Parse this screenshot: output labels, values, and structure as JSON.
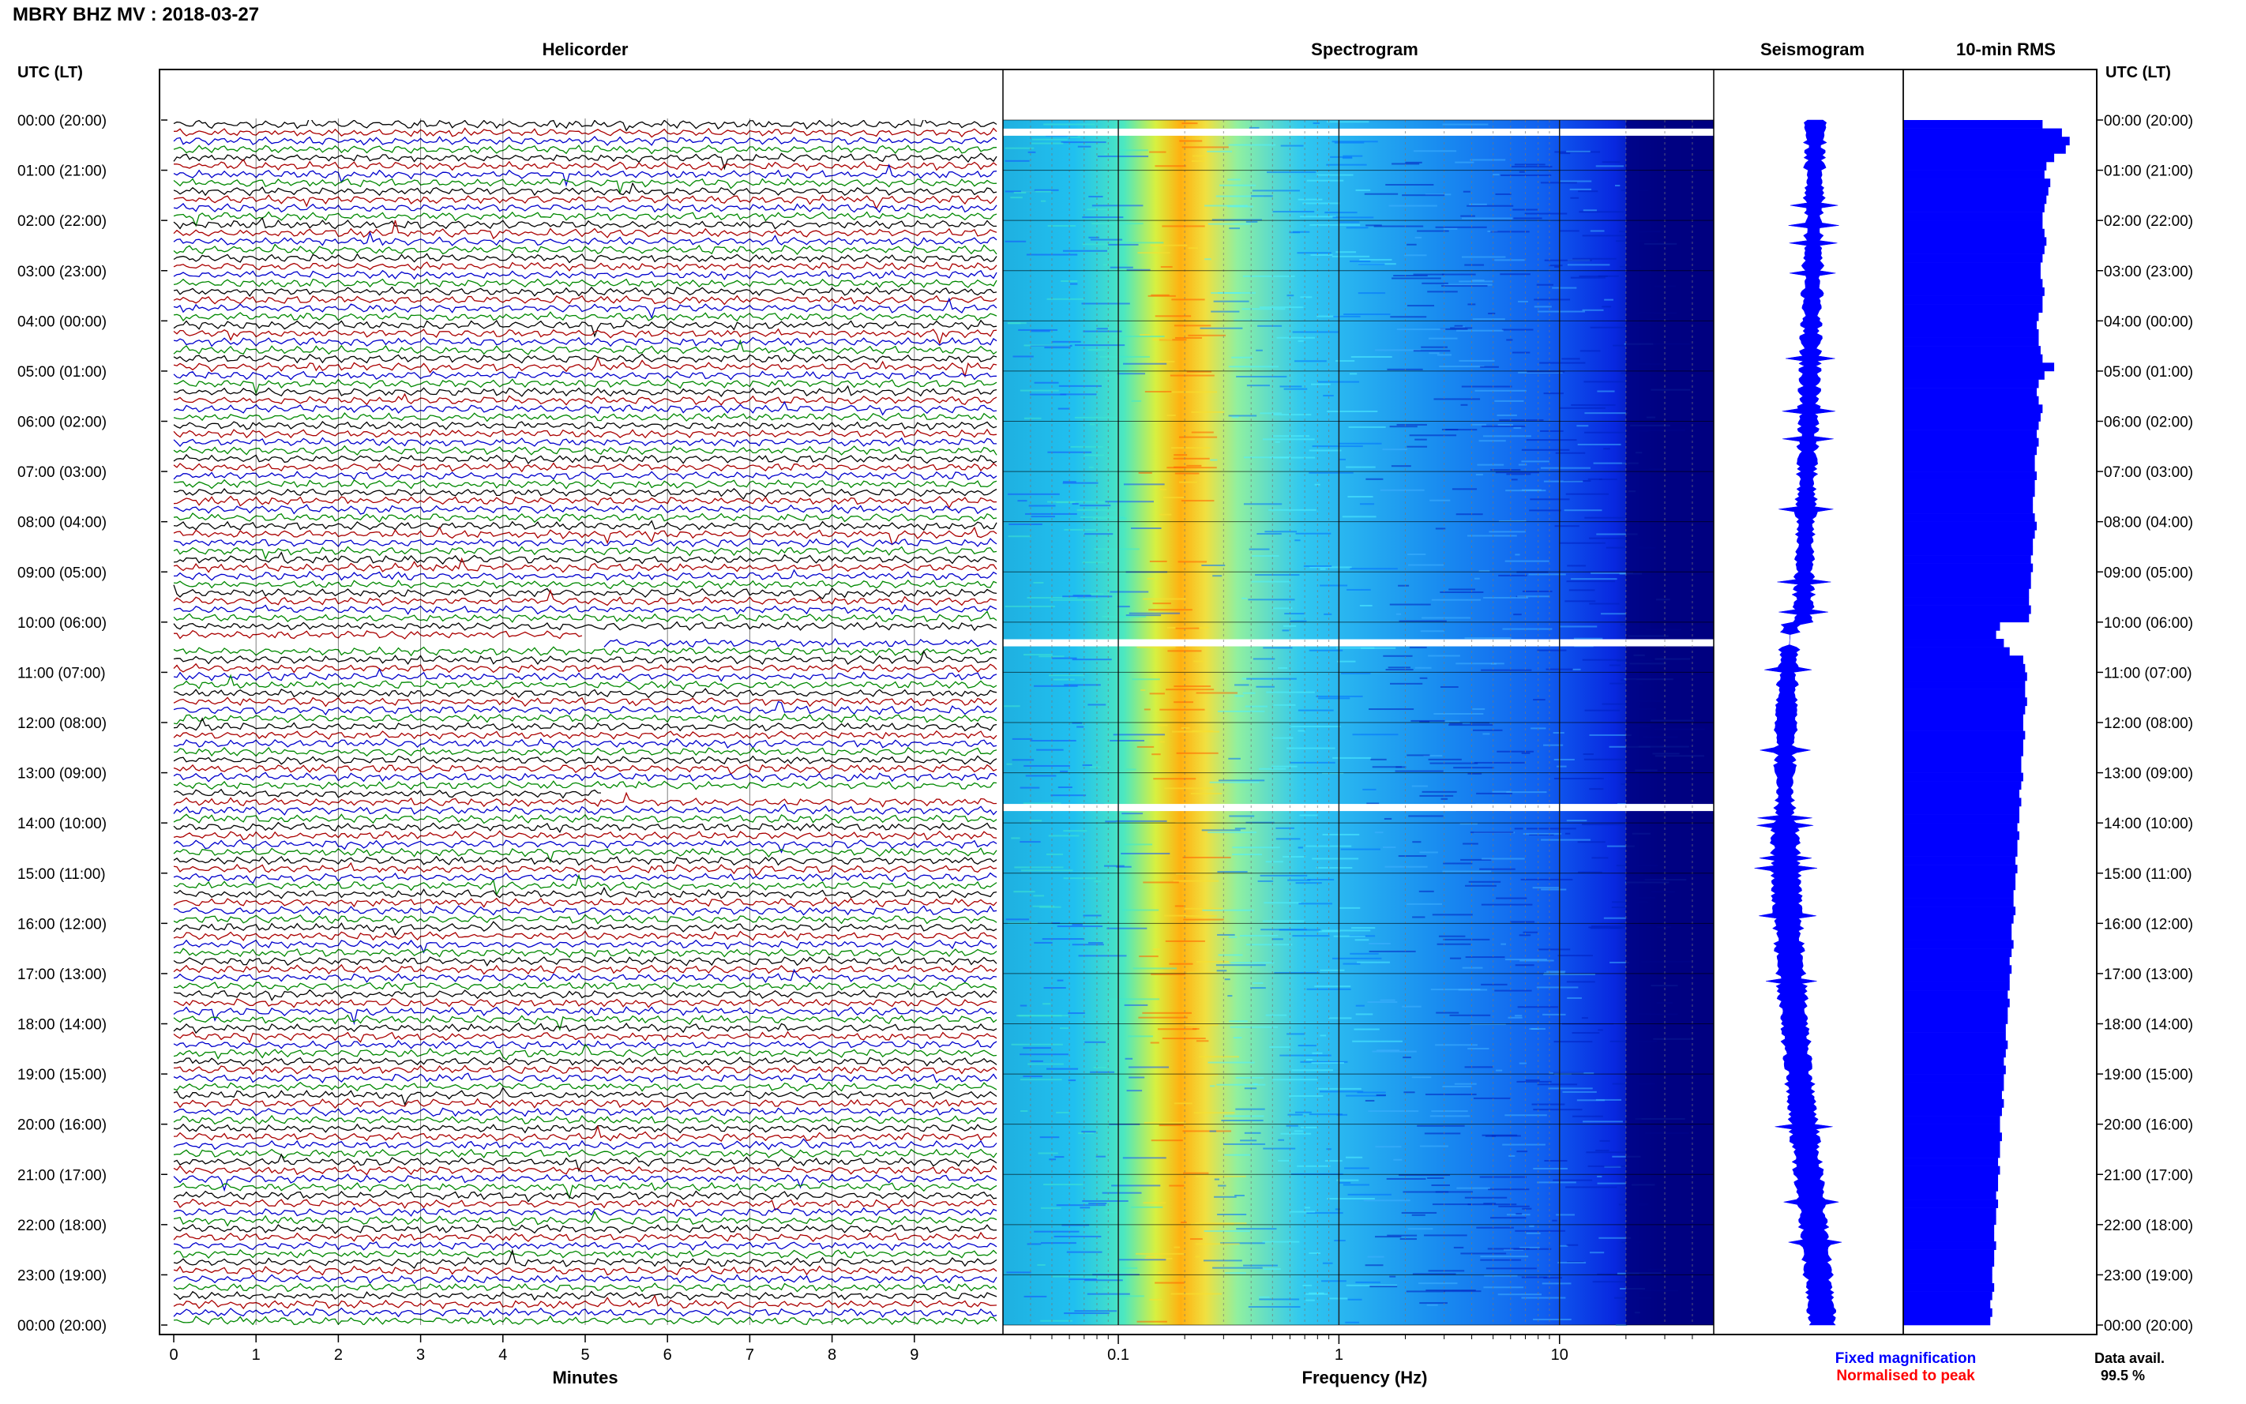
{
  "header": {
    "station_title": "MBRY BHZ MV : 2018-03-27"
  },
  "left_axis": {
    "label": "UTC (LT)"
  },
  "right_axis": {
    "label": "UTC (LT)"
  },
  "time_labels": [
    "00:00 (20:00)",
    "01:00 (21:00)",
    "02:00 (22:00)",
    "03:00 (23:00)",
    "04:00 (00:00)",
    "05:00 (01:00)",
    "06:00 (02:00)",
    "07:00 (03:00)",
    "08:00 (04:00)",
    "09:00 (05:00)",
    "10:00 (06:00)",
    "11:00 (07:00)",
    "12:00 (08:00)",
    "13:00 (09:00)",
    "14:00 (10:00)",
    "15:00 (11:00)",
    "16:00 (12:00)",
    "17:00 (13:00)",
    "18:00 (14:00)",
    "19:00 (15:00)",
    "20:00 (16:00)",
    "21:00 (17:00)",
    "22:00 (18:00)",
    "23:00 (19:00)",
    "00:00 (20:00)"
  ],
  "footer": {
    "legend_fixed": "Fixed magnification",
    "legend_normalised": "Normalised to peak",
    "data_avail_label": "Data avail.",
    "data_avail_value": "99.5 %"
  },
  "chart_data": [
    {
      "type": "line",
      "title": "Helicorder",
      "xlabel": "Minutes",
      "x_ticks": [
        "0",
        "1",
        "2",
        "3",
        "4",
        "5",
        "6",
        "7",
        "8",
        "9"
      ],
      "xlim": [
        0,
        10
      ],
      "lines_per_hour": 6,
      "trace_colors": [
        "#000000",
        "#aa0000",
        "#0000cc",
        "#008800"
      ],
      "gaps": [
        {
          "utc_hour_start": 10.25,
          "utc_hour_end": 10.42
        },
        {
          "utc_hour_start": 13.42,
          "utc_hour_end": 13.5
        }
      ]
    },
    {
      "type": "heatmap",
      "title": "Spectrogram",
      "xlabel": "Frequency (Hz)",
      "x_scale": "log",
      "x_ticks": [
        "0.1",
        "1",
        "10"
      ],
      "xlim": [
        0.03,
        50
      ],
      "peak_frequency_hz": 0.22,
      "colormap": [
        "#000080",
        "#0000ff",
        "#0080ff",
        "#00c0ff",
        "#40ffc0",
        "#c0ff40",
        "#ffc000",
        "#ff4000"
      ],
      "gaps": [
        {
          "utc_hour": 0.25
        },
        {
          "utc_hour": 10.42
        },
        {
          "utc_hour": 13.7
        }
      ]
    },
    {
      "type": "area",
      "title": "Seismogram",
      "color": "#0000ff",
      "gaps": [
        {
          "utc_hour_start": 10.25,
          "utc_hour_end": 10.5
        }
      ]
    },
    {
      "type": "bar",
      "title": "10-min RMS",
      "color": "#0000ff",
      "orientation": "horizontal",
      "bins_per_hour": 6,
      "relative_values": [
        0.72,
        0.82,
        0.86,
        0.84,
        0.78,
        0.74,
        0.73,
        0.76,
        0.75,
        0.74,
        0.73,
        0.72,
        0.72,
        0.73,
        0.74,
        0.73,
        0.72,
        0.71,
        0.71,
        0.72,
        0.73,
        0.72,
        0.72,
        0.7,
        0.69,
        0.7,
        0.7,
        0.71,
        0.72,
        0.78,
        0.73,
        0.7,
        0.69,
        0.7,
        0.72,
        0.71,
        0.7,
        0.69,
        0.7,
        0.69,
        0.68,
        0.68,
        0.69,
        0.68,
        0.68,
        0.67,
        0.67,
        0.68,
        0.69,
        0.68,
        0.67,
        0.67,
        0.66,
        0.67,
        0.66,
        0.66,
        0.65,
        0.65,
        0.66,
        0.65,
        0.5,
        0.48,
        0.52,
        0.55,
        0.62,
        0.63,
        0.64,
        0.63,
        0.63,
        0.64,
        0.63,
        0.62,
        0.62,
        0.63,
        0.62,
        0.62,
        0.61,
        0.61,
        0.62,
        0.61,
        0.6,
        0.61,
        0.6,
        0.6,
        0.59,
        0.6,
        0.59,
        0.59,
        0.58,
        0.59,
        0.58,
        0.58,
        0.57,
        0.57,
        0.58,
        0.57,
        0.56,
        0.56,
        0.57,
        0.56,
        0.55,
        0.56,
        0.55,
        0.55,
        0.54,
        0.55,
        0.54,
        0.54,
        0.53,
        0.53,
        0.54,
        0.53,
        0.52,
        0.53,
        0.52,
        0.52,
        0.51,
        0.52,
        0.51,
        0.5,
        0.5,
        0.51,
        0.5,
        0.5,
        0.49,
        0.5,
        0.49,
        0.49,
        0.48,
        0.49,
        0.48,
        0.48,
        0.47,
        0.47,
        0.48,
        0.47,
        0.47,
        0.46,
        0.46,
        0.47,
        0.46,
        0.45,
        0.46,
        0.45
      ]
    }
  ]
}
